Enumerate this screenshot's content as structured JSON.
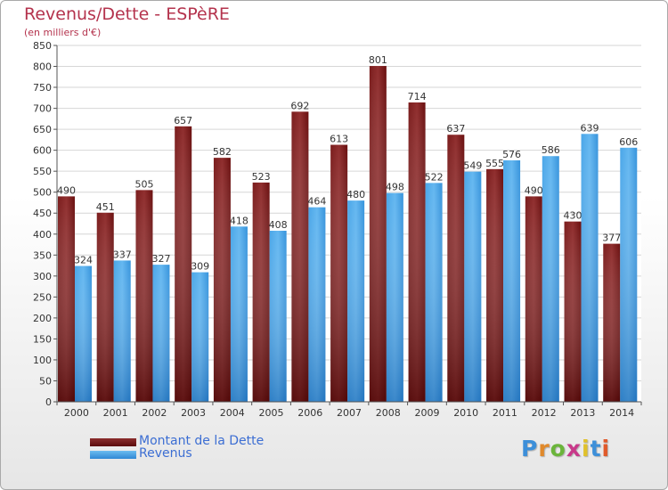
{
  "title": "Revenus/Dette - ESPèRE",
  "subtitle": "(en milliers d'€)",
  "logo": "Proxiti",
  "colors": {
    "dette": "#6e1414",
    "dette_light": "#8c2e2e",
    "revenus": "#3d9be0",
    "revenus_light": "#5cb0ec",
    "title": "#b4334d",
    "legend_text": "#3c6ed3"
  },
  "chart_data": {
    "type": "bar",
    "title": "Revenus/Dette - ESPèRE",
    "subtitle": "(en milliers d'€)",
    "categories": [
      "2000",
      "2001",
      "2002",
      "2003",
      "2004",
      "2005",
      "2006",
      "2007",
      "2008",
      "2009",
      "2010",
      "2011",
      "2012",
      "2013",
      "2014"
    ],
    "series": [
      {
        "name": "Montant de la Dette",
        "values": [
          490,
          451,
          505,
          657,
          582,
          523,
          692,
          613,
          801,
          714,
          637,
          555,
          490,
          430,
          377
        ]
      },
      {
        "name": "Revenus",
        "values": [
          324,
          337,
          327,
          309,
          418,
          408,
          464,
          480,
          498,
          522,
          549,
          576,
          586,
          639,
          606
        ]
      }
    ],
    "ylim": [
      0,
      850
    ],
    "yticks": [
      0,
      50,
      100,
      150,
      200,
      250,
      300,
      350,
      400,
      450,
      500,
      550,
      600,
      650,
      700,
      750,
      800,
      850
    ],
    "grid": true,
    "legend": "bottom-left"
  }
}
